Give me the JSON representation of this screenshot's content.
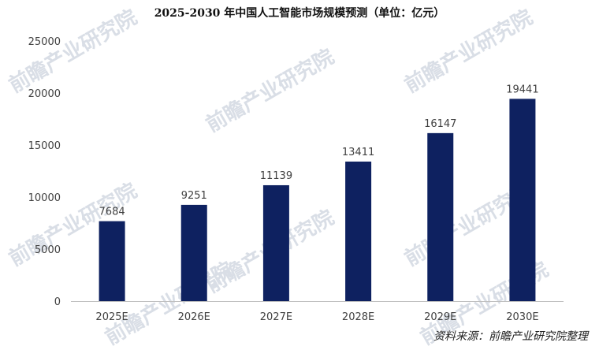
{
  "chart_data": {
    "type": "bar",
    "title": "2025-2030 年中国人工智能市场规模预测（单位：亿元）",
    "categories": [
      "2025E",
      "2026E",
      "2027E",
      "2028E",
      "2029E",
      "2030E"
    ],
    "values": [
      7684,
      9251,
      11139,
      13411,
      16147,
      19441
    ],
    "data_labels": [
      "7684",
      "9251",
      "11139",
      "13411",
      "16147",
      "19441"
    ],
    "y_ticks": [
      0,
      5000,
      10000,
      15000,
      20000,
      25000
    ],
    "ylim": [
      0,
      25000
    ],
    "grid": false,
    "legend": "none",
    "bar_color": "#0e2160",
    "axis_color": "#bfbfbf",
    "label_color": "#404040"
  },
  "watermark": {
    "text": "前瞻产业研究院",
    "color": "#d9dee6"
  },
  "source": "资料来源：前瞻产业研究院整理"
}
